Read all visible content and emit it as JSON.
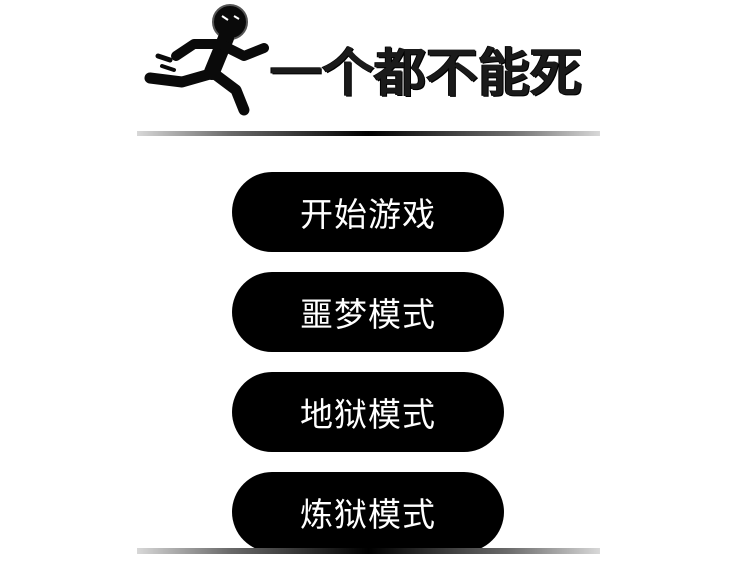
{
  "game": {
    "title": "一个都不能死",
    "logo_icon": "stick-figure-runner-icon"
  },
  "menu": {
    "start_game": "开始游戏",
    "nightmare_mode": "噩梦模式",
    "hell_mode": "地狱模式",
    "purgatory_mode": "炼狱模式"
  },
  "colors": {
    "background": "#ffffff",
    "button_bg": "#000000",
    "button_text": "#ffffff",
    "title_text": "#1a1a1a"
  }
}
